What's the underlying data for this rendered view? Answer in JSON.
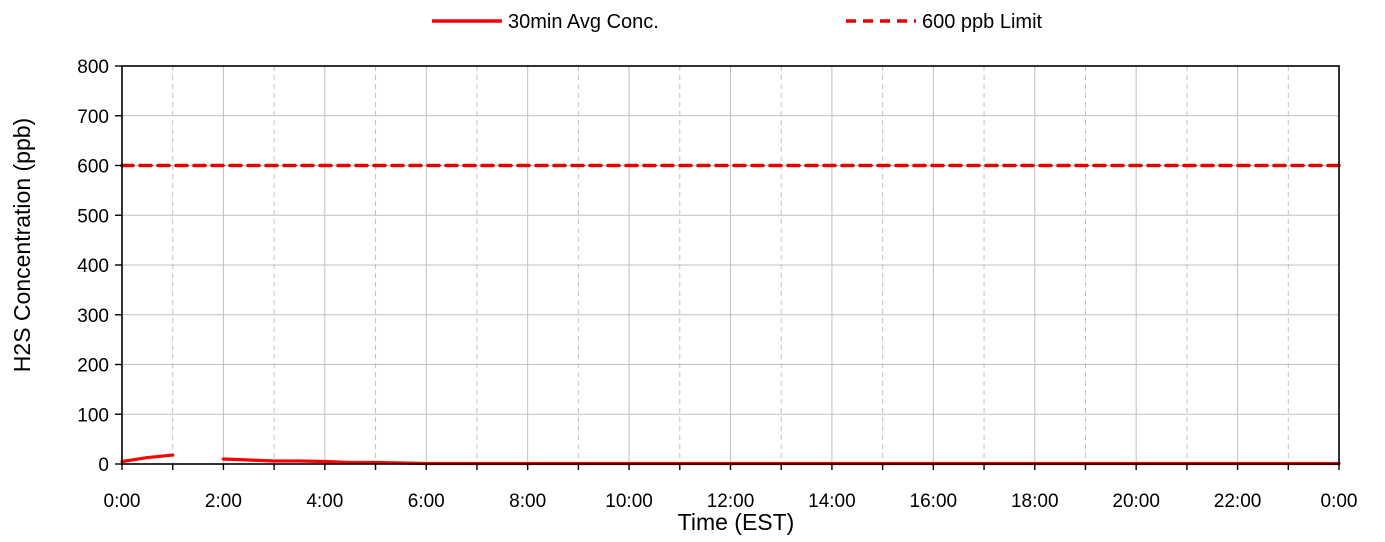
{
  "chart_data": {
    "type": "line",
    "title": "",
    "xlabel": "Time (EST)",
    "ylabel": "H2S Concentration (ppb)",
    "xlim": [
      0,
      24
    ],
    "ylim": [
      0,
      800
    ],
    "y_ticks": [
      0,
      100,
      200,
      300,
      400,
      500,
      600,
      700,
      800
    ],
    "x_ticks": [
      0,
      2,
      4,
      6,
      8,
      10,
      12,
      14,
      16,
      18,
      20,
      22,
      24
    ],
    "x_tick_labels": [
      "0:00",
      "2:00",
      "4:00",
      "6:00",
      "8:00",
      "10:00",
      "12:00",
      "14:00",
      "16:00",
      "18:00",
      "20:00",
      "22:00",
      "0:00"
    ],
    "grid": "major horizontal solid, hourly vertical dashed",
    "legend_position": "top-center",
    "colors": {
      "avg": "#ff0000",
      "limit": "#e60000",
      "axis": "#000000",
      "grid": "#c0c0c0"
    },
    "series": [
      {
        "name": "30min Avg Conc.",
        "style": "solid",
        "segments": [
          {
            "x": [
              0,
              0.5,
              1.0
            ],
            "y": [
              5,
              13,
              18
            ]
          },
          {
            "x": [
              2.0,
              2.5,
              3.0,
              3.5,
              4.0,
              4.5,
              5.0,
              5.5,
              6.0,
              6.5,
              7.0,
              7.5,
              8.0,
              9.0,
              10.0,
              11.0,
              12.0,
              13.0,
              14.0,
              15.0,
              16.0,
              17.0,
              18.0,
              19.0,
              20.0,
              21.0,
              22.0,
              23.0,
              24.0
            ],
            "y": [
              10,
              8,
              6,
              6,
              5,
              3,
              3,
              2,
              1,
              1,
              1,
              1,
              1,
              1,
              1,
              1,
              1,
              1,
              1,
              1,
              1,
              1,
              1,
              1,
              1,
              1,
              1,
              1,
              1
            ]
          }
        ]
      },
      {
        "name": "600 ppb Limit",
        "style": "dashed",
        "segments": [
          {
            "x": [
              0,
              24
            ],
            "y": [
              600,
              600
            ]
          }
        ]
      }
    ]
  }
}
